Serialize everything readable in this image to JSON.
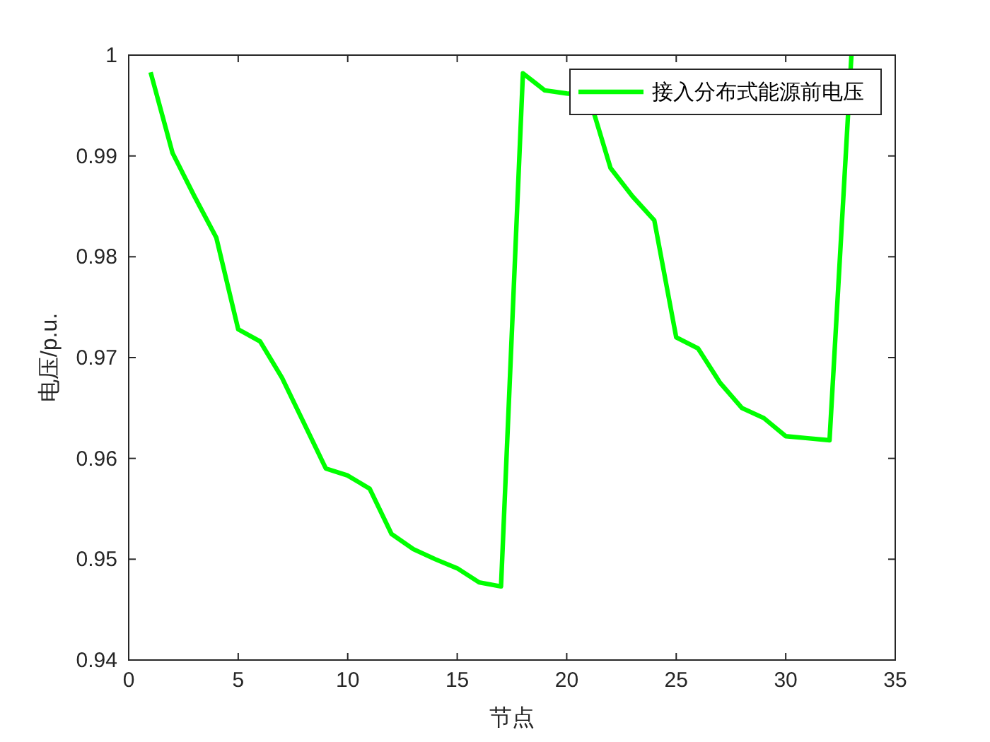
{
  "chart_data": {
    "type": "line",
    "xlabel": "节点",
    "ylabel": "电压/p.u.",
    "x": [
      1,
      2,
      3,
      4,
      5,
      6,
      7,
      8,
      9,
      10,
      11,
      12,
      13,
      14,
      15,
      16,
      17,
      18,
      19,
      20,
      21,
      22,
      23,
      24,
      25,
      26,
      27,
      28,
      29,
      30,
      31,
      32,
      33
    ],
    "series": [
      {
        "name": "接入分布式能源前电压",
        "color": "#00ff00",
        "values": [
          0.9983,
          0.9903,
          0.986,
          0.9819,
          0.9728,
          0.9716,
          0.968,
          0.9635,
          0.959,
          0.9583,
          0.957,
          0.9525,
          0.951,
          0.95,
          0.9491,
          0.9477,
          0.9473,
          0.9982,
          0.9965,
          0.9962,
          0.996,
          0.9888,
          0.986,
          0.9836,
          0.972,
          0.9709,
          0.9675,
          0.965,
          0.964,
          0.9622,
          0.962,
          0.9618,
          1.0
        ]
      }
    ],
    "xlim": [
      0,
      35
    ],
    "xticks": [
      0,
      5,
      10,
      15,
      20,
      25,
      30,
      35
    ],
    "ylim": [
      0.94,
      1
    ],
    "yticks": [
      0.94,
      0.95,
      0.96,
      0.97,
      0.98,
      0.99,
      1
    ],
    "grid": false,
    "legend": "top right",
    "marker": "none",
    "line_style": "solid"
  }
}
